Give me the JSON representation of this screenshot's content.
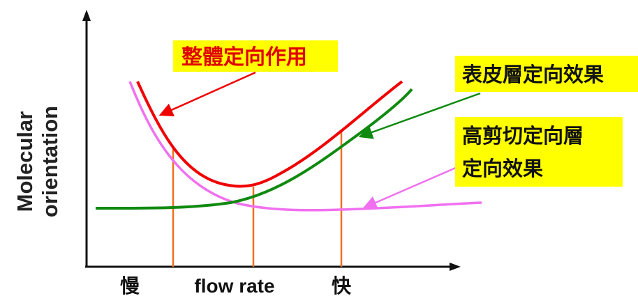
{
  "y_axis_label_line1": "Molecular",
  "y_axis_label_line2": "orientation",
  "x_axis_label": "flow rate",
  "x_slow_label": "慢",
  "x_fast_label": "快",
  "labels": {
    "overall": "整體定向作用",
    "skin": "表皮層定向效果",
    "shear_line1": "高剪切定向層",
    "shear_line2": "定向效果"
  },
  "colors": {
    "overall_curve": "#f00000",
    "skin_curve": "#108a10",
    "shear_curve": "#f070f0",
    "marker_lines": "#f07020",
    "label_bg": "#ffff00",
    "axis": "#111111"
  }
}
